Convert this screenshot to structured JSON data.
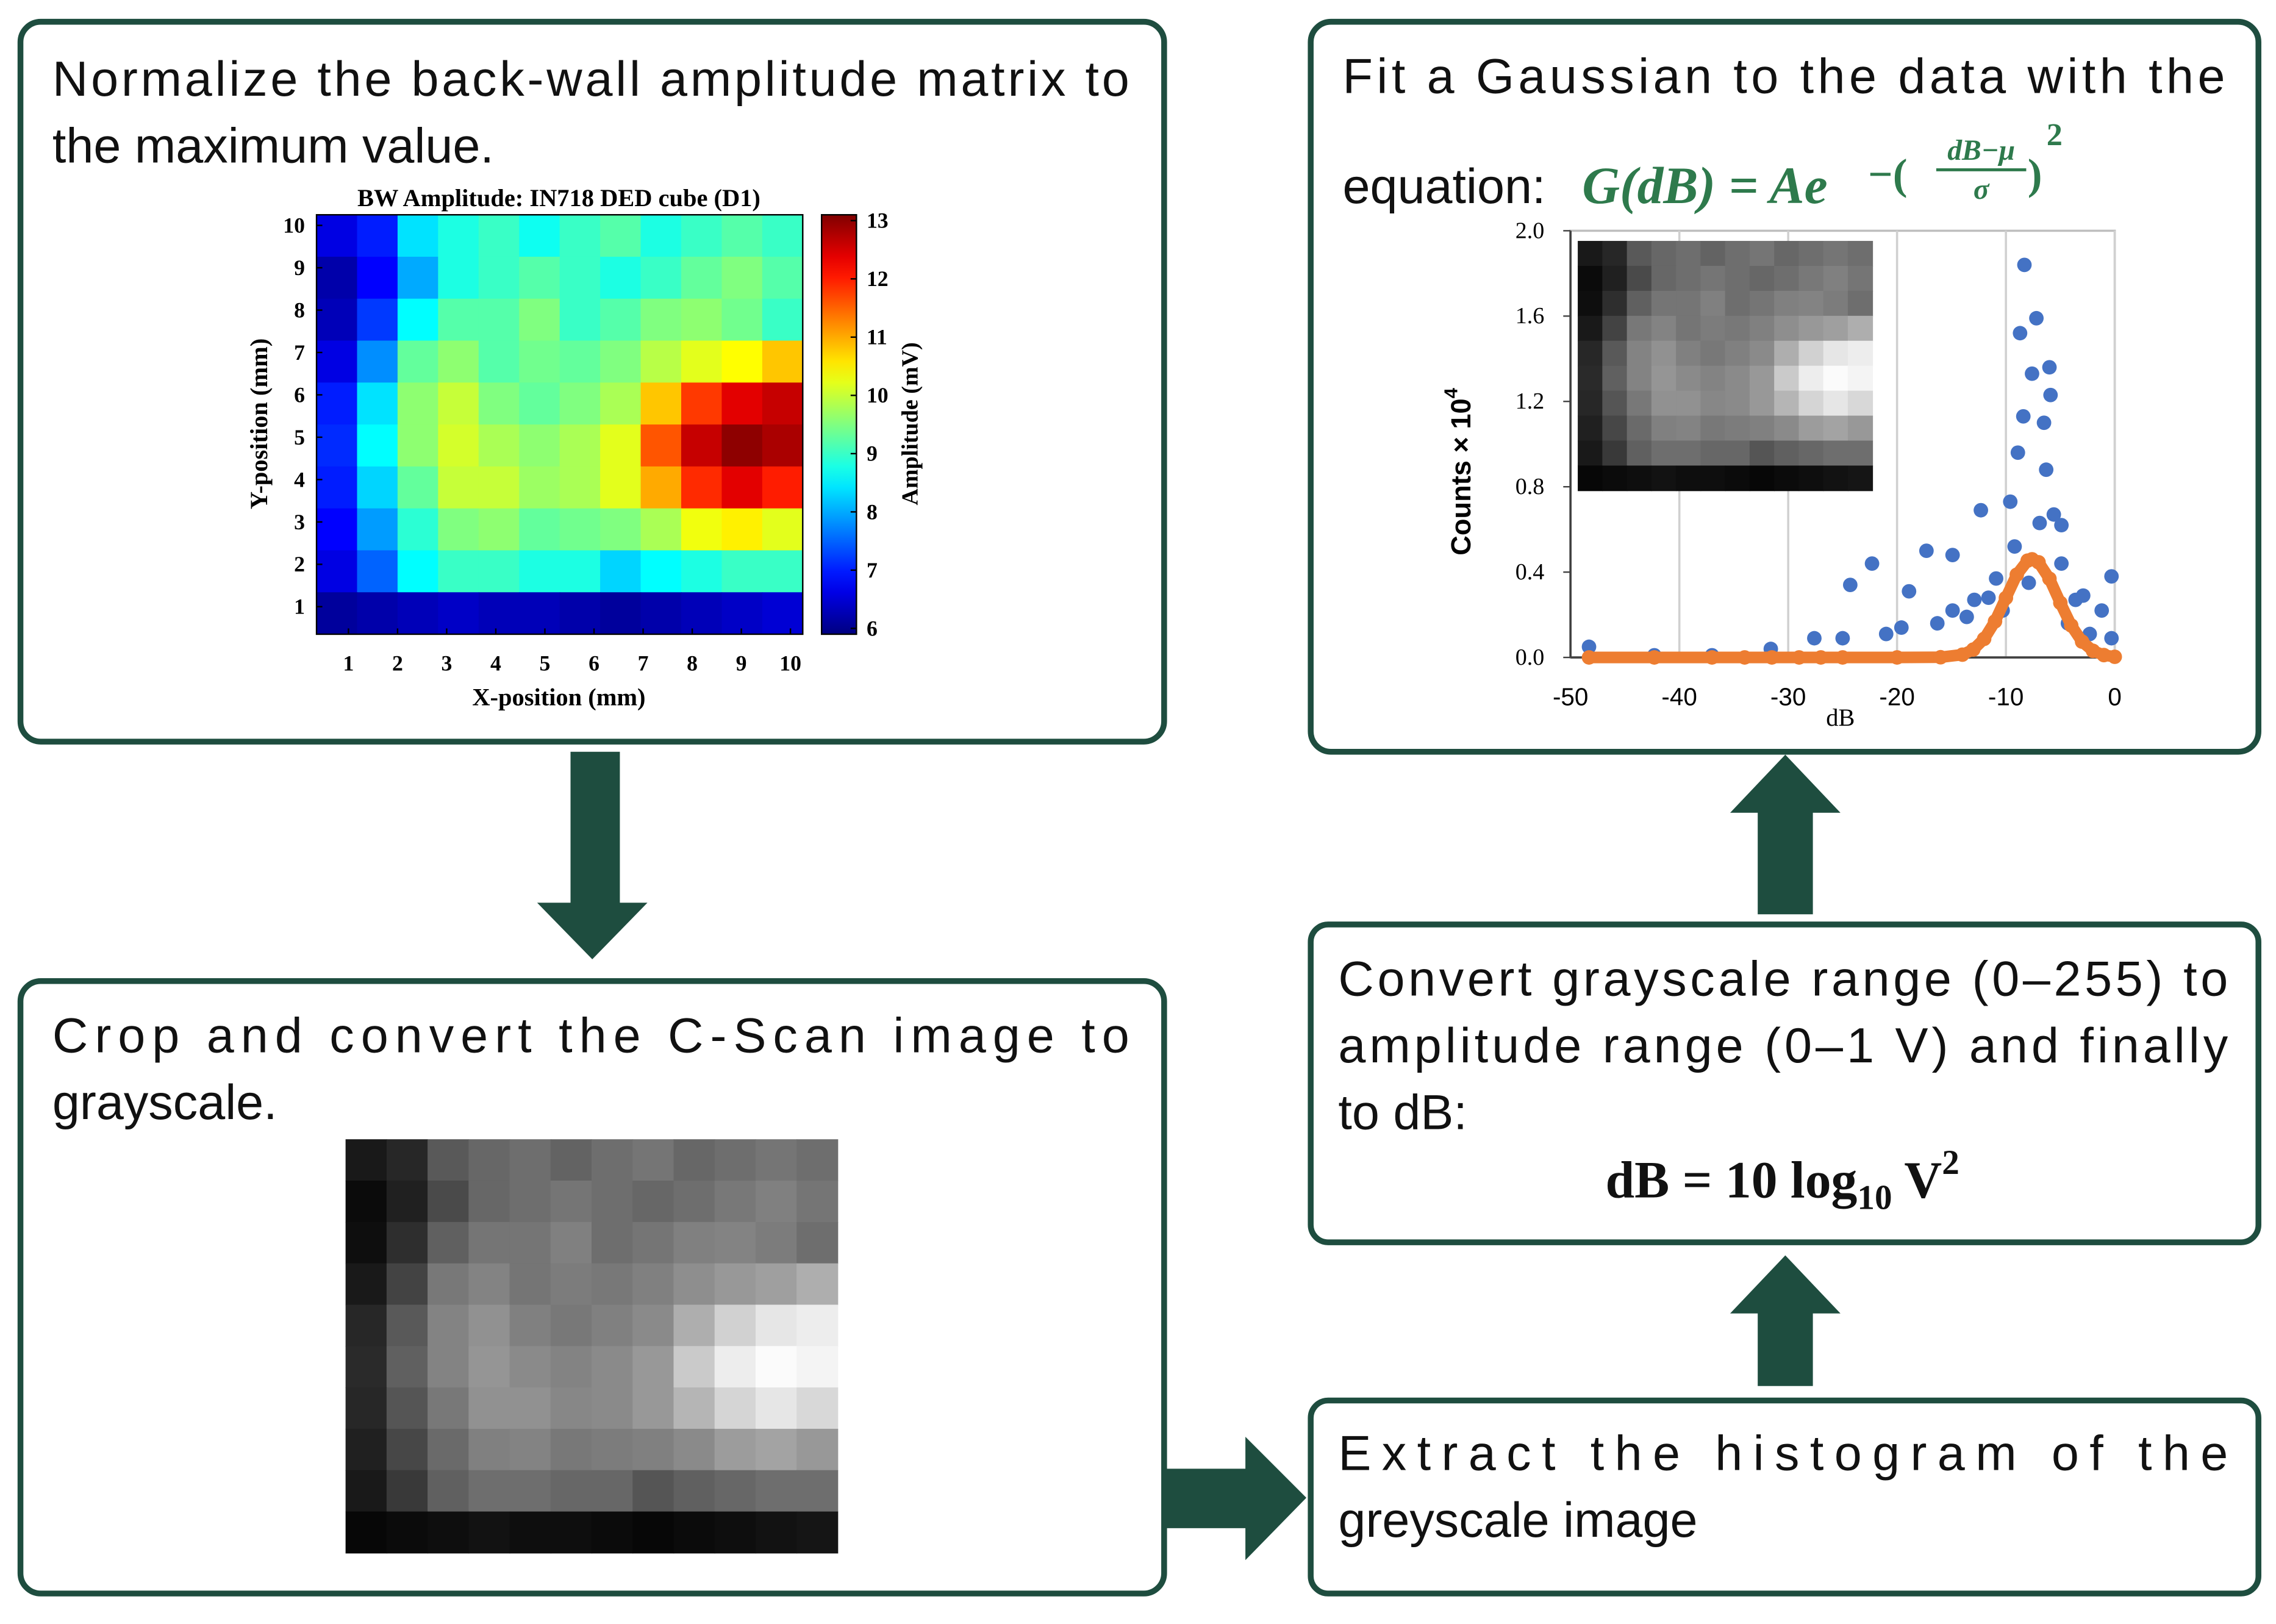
{
  "steps": [
    {
      "lines": [
        "Normalize the back-wall amplitude matrix to",
        "the maximum value."
      ]
    },
    {
      "lines": [
        "Crop and convert the C-Scan image to",
        "grayscale."
      ]
    },
    {
      "lines": [
        "Extract the histogram of the",
        "greyscale image"
      ]
    },
    {
      "lines": [
        "Convert grayscale range (0–255) to",
        "amplitude range (0–1 V) and finally",
        "to dB:"
      ],
      "equation": {
        "main": "dB = 10 log",
        "sub": "10",
        "var": " V",
        "power": "2"
      }
    },
    {
      "lines": [
        "Fit a Gaussian to the data with the",
        "equation:"
      ],
      "equation": {
        "main": "G(dB) = Ae",
        "exponent_open": "−(",
        "numerator": "dB−μ",
        "denominator": "σ",
        "exponent_close": ")",
        "power": "2"
      }
    }
  ],
  "chart_data": [
    {
      "type": "heatmap",
      "title": "BW Amplitude: IN718 DED cube (D1)",
      "xlabel": "X-position (mm)",
      "ylabel": "Y-position (mm)",
      "colorbar_label": "Amplitude (mV)",
      "colormap": "jet",
      "xlim": [
        0.35,
        10.25
      ],
      "ylim": [
        0.35,
        10.25
      ],
      "xticks": [
        1,
        2,
        3,
        4,
        5,
        6,
        7,
        8,
        9,
        10
      ],
      "yticks": [
        1,
        2,
        3,
        4,
        5,
        6,
        7,
        8,
        9,
        10
      ],
      "clim": [
        5.9,
        13.1
      ],
      "cticks": [
        6,
        7,
        8,
        9,
        10,
        11,
        12,
        13
      ],
      "values": [
        [
          6.6,
          7.0,
          8.4,
          8.8,
          9.0,
          8.7,
          9.0,
          9.2,
          8.8,
          9.0,
          9.2,
          9.0
        ],
        [
          6.2,
          6.8,
          8.0,
          8.8,
          9.0,
          9.2,
          9.0,
          8.8,
          9.0,
          9.3,
          9.5,
          9.2
        ],
        [
          6.3,
          7.2,
          8.6,
          9.2,
          9.2,
          9.5,
          9.0,
          9.2,
          9.5,
          9.6,
          9.4,
          9.0
        ],
        [
          6.6,
          7.8,
          9.3,
          9.6,
          9.2,
          9.4,
          9.3,
          9.5,
          9.9,
          10.2,
          10.4,
          10.8
        ],
        [
          7.0,
          8.4,
          9.6,
          10.0,
          9.5,
          9.3,
          9.5,
          9.8,
          10.8,
          11.8,
          12.4,
          12.6
        ],
        [
          7.1,
          8.6,
          9.6,
          10.1,
          9.8,
          9.6,
          9.8,
          10.2,
          11.6,
          12.6,
          13.0,
          12.8
        ],
        [
          7.0,
          8.3,
          9.3,
          10.0,
          10.0,
          9.7,
          9.8,
          10.2,
          11.0,
          11.9,
          12.4,
          12.0
        ],
        [
          6.8,
          7.9,
          8.9,
          9.5,
          9.6,
          9.3,
          9.4,
          9.5,
          9.8,
          10.3,
          10.5,
          10.2
        ],
        [
          6.6,
          7.5,
          8.6,
          9.0,
          9.0,
          8.8,
          8.8,
          8.3,
          8.6,
          8.8,
          9.0,
          9.0
        ],
        [
          6.1,
          6.2,
          6.3,
          6.4,
          6.3,
          6.3,
          6.2,
          6.1,
          6.2,
          6.3,
          6.4,
          6.5
        ]
      ]
    },
    {
      "type": "scatter",
      "xlabel": "dB",
      "ylabel": "Counts × 10",
      "ylabel_sup": "4",
      "xlim": [
        -50,
        0
      ],
      "ylim": [
        0,
        2.0
      ],
      "xticks": [
        -50,
        -40,
        -30,
        -20,
        -10,
        0
      ],
      "yticks": [
        {
          "value": 0,
          "label": "0.0"
        },
        0.4,
        0.8,
        1.2,
        1.6,
        {
          "value": 2.0,
          "label": "2.0"
        }
      ],
      "xgrid": true,
      "series": [
        {
          "color": "#4472c4",
          "x": [
            -48.3,
            -42.3,
            -37,
            -31.6,
            -27.6,
            -25,
            -24.3,
            -22.3,
            -21,
            -19.6,
            -18.9,
            -17.3,
            -16.3,
            -14.9,
            -14.9,
            -13.6,
            -12.9,
            -12.3,
            -11.6,
            -10.9,
            -10.3,
            -9.6,
            -9.2,
            -8.9,
            -8.7,
            -8.4,
            -8.3,
            -7.9,
            -7.6,
            -7.2,
            -6.9,
            -6.5,
            -6.3,
            -6,
            -5.9,
            -5.6,
            -4.9,
            -4.9,
            -4.3,
            -3.6,
            -2.9,
            -2.3,
            -1.2,
            -0.3,
            -0.3
          ],
          "values": [
            0.05,
            0.01,
            0.01,
            0.04,
            0.09,
            0.09,
            0.34,
            0.44,
            0.11,
            0.14,
            0.31,
            0.5,
            0.16,
            0.48,
            0.22,
            0.19,
            0.27,
            0.69,
            0.28,
            0.37,
            0.22,
            0.73,
            0.52,
            0.96,
            1.52,
            1.13,
            1.84,
            0.35,
            1.33,
            1.59,
            0.63,
            1.1,
            0.88,
            1.36,
            1.23,
            0.67,
            0.62,
            0.44,
            0.16,
            0.27,
            0.29,
            0.11,
            0.22,
            0.38,
            0.09
          ]
        },
        {
          "color": "#ed7d31",
          "line": true,
          "x": [
            -48.3,
            -42.3,
            -37,
            -34,
            -31.5,
            -29,
            -27,
            -25,
            -20,
            -16,
            -14,
            -13,
            -12,
            -11,
            -10,
            -9,
            -8,
            -7.6,
            -7,
            -6,
            -5,
            -4,
            -3,
            -2,
            -1,
            0
          ],
          "values": [
            0,
            0,
            0,
            0,
            0,
            0,
            0,
            0,
            0,
            0.001,
            0.013,
            0.037,
            0.087,
            0.169,
            0.279,
            0.388,
            0.454,
            0.46,
            0.446,
            0.369,
            0.256,
            0.15,
            0.074,
            0.031,
            0.011,
            0.003
          ]
        }
      ]
    }
  ]
}
